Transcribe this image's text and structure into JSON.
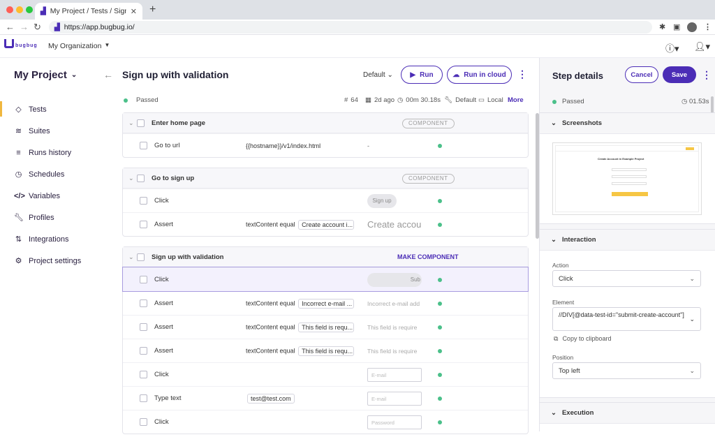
{
  "browser": {
    "tab_title": "My Project / Tests / Sign up wi",
    "url": "https://app.bugbug.io/"
  },
  "app": {
    "logo_text": "bugbug",
    "organization": "My Organization"
  },
  "sidebar": {
    "project": "My Project",
    "items": [
      {
        "label": "Tests",
        "icon": "diamond-icon",
        "active": true
      },
      {
        "label": "Suites",
        "icon": "layers-icon",
        "active": false
      },
      {
        "label": "Runs history",
        "icon": "list-icon",
        "active": false
      },
      {
        "label": "Schedules",
        "icon": "clock-icon",
        "active": false
      },
      {
        "label": "Variables",
        "icon": "code-icon",
        "active": false
      },
      {
        "label": "Profiles",
        "icon": "wrench-icon",
        "active": false
      },
      {
        "label": "Integrations",
        "icon": "integration-icon",
        "active": false
      },
      {
        "label": "Project settings",
        "icon": "gear-icon",
        "active": false
      }
    ]
  },
  "test": {
    "title": "Sign up with validation",
    "profile": "Default",
    "run_label": "Run",
    "run_cloud_label": "Run in cloud",
    "status": "Passed",
    "run_number": "64",
    "date": "2d ago",
    "duration": "00m 30.18s",
    "profile_meta": "Default",
    "env": "Local",
    "more": "More"
  },
  "groups": [
    {
      "name": "Enter home page",
      "badge": "COMPONENT",
      "steps": [
        {
          "action": "Go to url",
          "param": "{{hostname}}/v1/index.html",
          "chip": "",
          "preview": "-",
          "preview_type": "dash"
        }
      ]
    },
    {
      "name": "Go to sign up",
      "badge": "COMPONENT",
      "steps": [
        {
          "action": "Click",
          "param": "",
          "chip": "",
          "preview": "Sign up",
          "preview_type": "button"
        },
        {
          "action": "Assert",
          "param": "textContent equal",
          "chip": "Create account i...",
          "preview": "Create accou",
          "preview_type": "bigtext"
        }
      ]
    },
    {
      "name": "Sign up with validation",
      "make_component": "MAKE COMPONENT",
      "steps": [
        {
          "action": "Click",
          "param": "",
          "chip": "",
          "preview": "Sub",
          "preview_type": "button-wide",
          "selected": true
        },
        {
          "action": "Assert",
          "param": "textContent equal",
          "chip": "Incorrect e-mail ...",
          "preview": "Incorrect e-mail add",
          "preview_type": "text"
        },
        {
          "action": "Assert",
          "param": "textContent equal",
          "chip": "This field is requ...",
          "preview": "This field is require",
          "preview_type": "text"
        },
        {
          "action": "Assert",
          "param": "textContent equal",
          "chip": "This field is requ...",
          "preview": "This field is require",
          "preview_type": "text"
        },
        {
          "action": "Click",
          "param": "",
          "chip": "",
          "preview": "E-mail",
          "preview_type": "input"
        },
        {
          "action": "Type text",
          "param": "",
          "chip": "test@test.com",
          "preview": "E-mail",
          "preview_type": "input"
        },
        {
          "action": "Click",
          "param": "",
          "chip": "",
          "preview": "Password",
          "preview_type": "input"
        }
      ]
    }
  ],
  "details": {
    "title": "Step details",
    "cancel": "Cancel",
    "save": "Save",
    "status": "Passed",
    "duration": "01.53s",
    "sections": {
      "screenshots": "Screenshots",
      "interaction": "Interaction",
      "execution": "Execution"
    },
    "action_label": "Action",
    "action_value": "Click",
    "element_label": "Element",
    "element_value": "//DIV[@data-test-id=\"submit-create-account\"]",
    "copy_label": "Copy to clipboard",
    "position_label": "Position",
    "position_value": "Top left",
    "screenshot_heading": "Create Account in Example Project"
  },
  "colors": {
    "brand": "#4b2db6",
    "passed": "#4bc08a",
    "active_marker": "#f0b73f"
  }
}
